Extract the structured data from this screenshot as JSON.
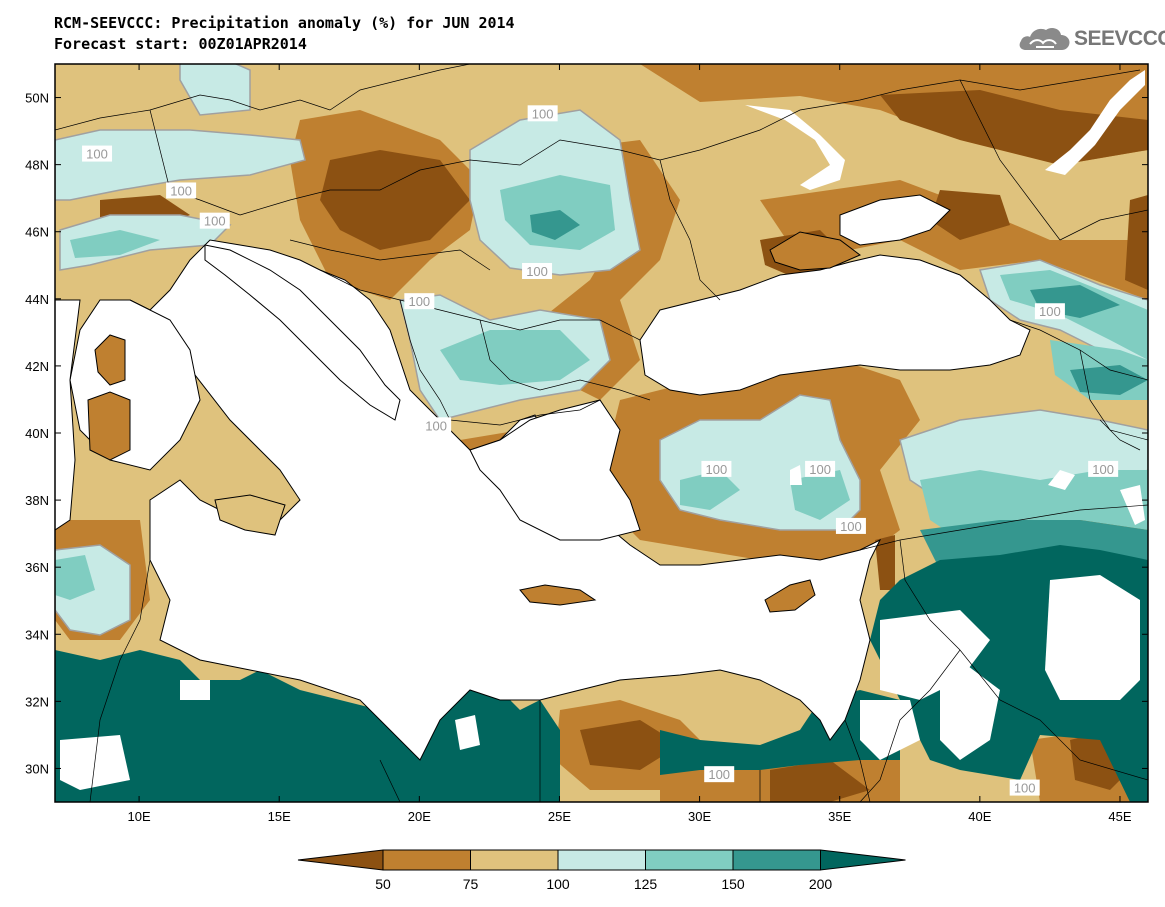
{
  "header": {
    "title_line1": "RCM-SEEVCCC: Precipitation anomaly (%) for JUN 2014",
    "title_line2": "Forecast start: 00Z01APR2014"
  },
  "logo": {
    "text": "SEEVCCC",
    "icon": "cloud-icon"
  },
  "map": {
    "lon_range": [
      7,
      46
    ],
    "lat_range": [
      29,
      51
    ],
    "lat_ticks": [
      "50N",
      "48N",
      "46N",
      "44N",
      "42N",
      "40N",
      "38N",
      "36N",
      "34N",
      "32N",
      "30N"
    ],
    "lon_ticks": [
      "10E",
      "15E",
      "20E",
      "25E",
      "30E",
      "35E",
      "40E",
      "45E"
    ],
    "contour_labels": [
      {
        "text": "100",
        "lon": 8.5,
        "lat": 48.3
      },
      {
        "text": "100",
        "lon": 11.5,
        "lat": 47.2
      },
      {
        "text": "100",
        "lon": 12.7,
        "lat": 46.3
      },
      {
        "text": "100",
        "lon": 24.4,
        "lat": 49.5
      },
      {
        "text": "100",
        "lon": 24.2,
        "lat": 44.8
      },
      {
        "text": "100",
        "lon": 20.0,
        "lat": 43.9
      },
      {
        "text": "100",
        "lon": 20.6,
        "lat": 40.2
      },
      {
        "text": "100",
        "lon": 30.6,
        "lat": 38.9
      },
      {
        "text": "100",
        "lon": 34.3,
        "lat": 38.9
      },
      {
        "text": "100",
        "lon": 35.4,
        "lat": 37.2
      },
      {
        "text": "100",
        "lon": 42.5,
        "lat": 43.6
      },
      {
        "text": "100",
        "lon": 44.4,
        "lat": 38.9
      },
      {
        "text": "100",
        "lon": 30.7,
        "lat": 29.8
      },
      {
        "text": "100",
        "lon": 41.6,
        "lat": 29.4
      }
    ]
  },
  "colorbar": {
    "labels": [
      "50",
      "75",
      "100",
      "125",
      "150",
      "200"
    ],
    "colors": [
      "#8c5112",
      "#bf8030",
      "#dfc27d",
      "#c7eae5",
      "#80cdc1",
      "#35978f",
      "#01665e"
    ]
  },
  "colors": {
    "ocean": "#ffffff",
    "contour_100": "#a0a0a0"
  }
}
